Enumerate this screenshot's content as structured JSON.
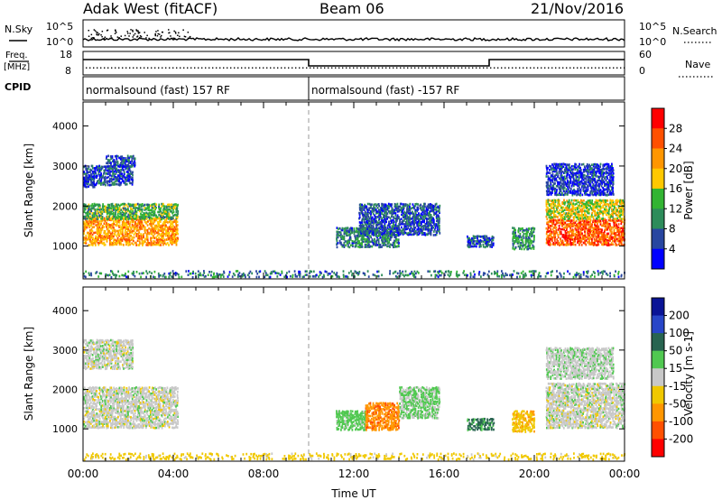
{
  "header": {
    "title": "Adak West (fitACF)",
    "beam": "Beam 06",
    "date": "21/Nov/2016"
  },
  "strip_labels": {
    "nsky": "N.Sky",
    "nsky_ticks": [
      "10^5",
      "10^0"
    ],
    "nsearch": "N.Search",
    "nsearch_ticks": [
      "10^5",
      "10^0"
    ],
    "freq_line1": "Freq.",
    "freq_line2": "[MHz]",
    "freq_ticks": [
      "18",
      "8"
    ],
    "nave": "Nave",
    "nave_ticks": [
      "60",
      "0"
    ],
    "cpid": "CPID"
  },
  "cpid_segments": [
    {
      "label": "normalsound (fast) 157 RF",
      "start_hour": 0,
      "end_hour": 10
    },
    {
      "label": "normalsound (fast) -157 RF",
      "start_hour": 10,
      "end_hour": 24
    }
  ],
  "freq_segments": [
    {
      "start_hour": 0,
      "end_hour": 10,
      "level": "high"
    },
    {
      "start_hour": 10,
      "end_hour": 18,
      "level": "low"
    },
    {
      "start_hour": 18,
      "end_hour": 24,
      "level": "high"
    }
  ],
  "x_axis": {
    "label": "Time UT",
    "ticks": [
      "00:00",
      "04:00",
      "08:00",
      "12:00",
      "16:00",
      "20:00",
      "00:00"
    ],
    "range_hours": [
      0,
      24
    ],
    "marker_hour": 10
  },
  "power_colorbar": {
    "label": "Power [dB]",
    "ticks": [
      "28",
      "24",
      "20",
      "16",
      "12",
      "8",
      "4"
    ],
    "colors": [
      "#ff0000",
      "#ff5000",
      "#ff9600",
      "#ffc800",
      "#32b432",
      "#2d8c5a",
      "#2846a0",
      "#0000ff"
    ]
  },
  "velocity_colorbar": {
    "label": "Velocity [m s-1]",
    "ticks": [
      "200",
      "100",
      "50",
      "15",
      "-15",
      "-50",
      "-100",
      "-200"
    ],
    "colors": [
      "#0a1496",
      "#2846c8",
      "#286450",
      "#50c850",
      "#c8c8c8",
      "#f0c800",
      "#ff9600",
      "#ff5000",
      "#ff0000"
    ]
  },
  "chart_data": [
    {
      "type": "heatmap",
      "title": "Power",
      "xlabel": "Time UT",
      "ylabel": "Slant Range [km]",
      "xlim_hours": [
        0,
        24
      ],
      "ylim_km": [
        180,
        4600
      ],
      "y_ticks": [
        1000,
        2000,
        3000,
        4000
      ],
      "value_label": "Power [dB]",
      "clim": [
        0,
        30
      ],
      "echo_regions": [
        {
          "t0": 0.0,
          "t1": 4.2,
          "r0": 1050,
          "r1": 1750,
          "power": 20
        },
        {
          "t0": 0.0,
          "t1": 4.2,
          "r0": 1700,
          "r1": 2100,
          "power": 12
        },
        {
          "t0": 0.0,
          "t1": 2.2,
          "r0": 2550,
          "r1": 3050,
          "power": 6
        },
        {
          "t0": 1.0,
          "t1": 2.3,
          "r0": 3000,
          "r1": 3300,
          "power": 5
        },
        {
          "t0": 0.0,
          "t1": 0.5,
          "r0": 2500,
          "r1": 2800,
          "power": 4
        },
        {
          "t0": 11.2,
          "t1": 14.0,
          "r0": 1000,
          "r1": 1500,
          "power": 8
        },
        {
          "t0": 12.2,
          "t1": 15.8,
          "r0": 1300,
          "r1": 2100,
          "power": 6
        },
        {
          "t0": 17.0,
          "t1": 18.2,
          "r0": 1000,
          "r1": 1300,
          "power": 6
        },
        {
          "t0": 19.0,
          "t1": 20.0,
          "r0": 950,
          "r1": 1500,
          "power": 10
        },
        {
          "t0": 20.5,
          "t1": 24.0,
          "r0": 1050,
          "r1": 1700,
          "power": 24
        },
        {
          "t0": 20.5,
          "t1": 24.0,
          "r0": 1700,
          "r1": 2200,
          "power": 16
        },
        {
          "t0": 20.5,
          "t1": 23.5,
          "r0": 2300,
          "r1": 3100,
          "power": 4
        },
        {
          "t0": 0.0,
          "t1": 24.0,
          "r0": 250,
          "r1": 420,
          "power": 8
        }
      ]
    },
    {
      "type": "heatmap",
      "title": "Velocity",
      "xlabel": "Time UT",
      "ylabel": "Slant Range [km]",
      "xlim_hours": [
        0,
        24
      ],
      "ylim_km": [
        180,
        4600
      ],
      "y_ticks": [
        1000,
        2000,
        3000,
        4000
      ],
      "value_label": "Velocity [m s-1]",
      "clim": [
        -200,
        200
      ],
      "echo_regions": [
        {
          "t0": 0.0,
          "t1": 4.2,
          "r0": 1050,
          "r1": 2100,
          "velocity": 0
        },
        {
          "t0": 0.0,
          "t1": 2.2,
          "r0": 2550,
          "r1": 3300,
          "velocity": 0
        },
        {
          "t0": 11.2,
          "t1": 12.5,
          "r0": 1000,
          "r1": 1500,
          "velocity": 30
        },
        {
          "t0": 12.5,
          "t1": 14.0,
          "r0": 1000,
          "r1": 1700,
          "velocity": -90
        },
        {
          "t0": 14.0,
          "t1": 15.8,
          "r0": 1300,
          "r1": 2100,
          "velocity": 20
        },
        {
          "t0": 17.0,
          "t1": 18.2,
          "r0": 1000,
          "r1": 1300,
          "velocity": 60
        },
        {
          "t0": 19.0,
          "t1": 20.0,
          "r0": 950,
          "r1": 1500,
          "velocity": -40
        },
        {
          "t0": 20.5,
          "t1": 24.0,
          "r0": 1050,
          "r1": 2200,
          "velocity": 0
        },
        {
          "t0": 20.5,
          "t1": 23.5,
          "r0": 2300,
          "r1": 3100,
          "velocity": 5
        },
        {
          "t0": 0.0,
          "t1": 24.0,
          "r0": 250,
          "r1": 420,
          "velocity": -30
        }
      ]
    }
  ]
}
